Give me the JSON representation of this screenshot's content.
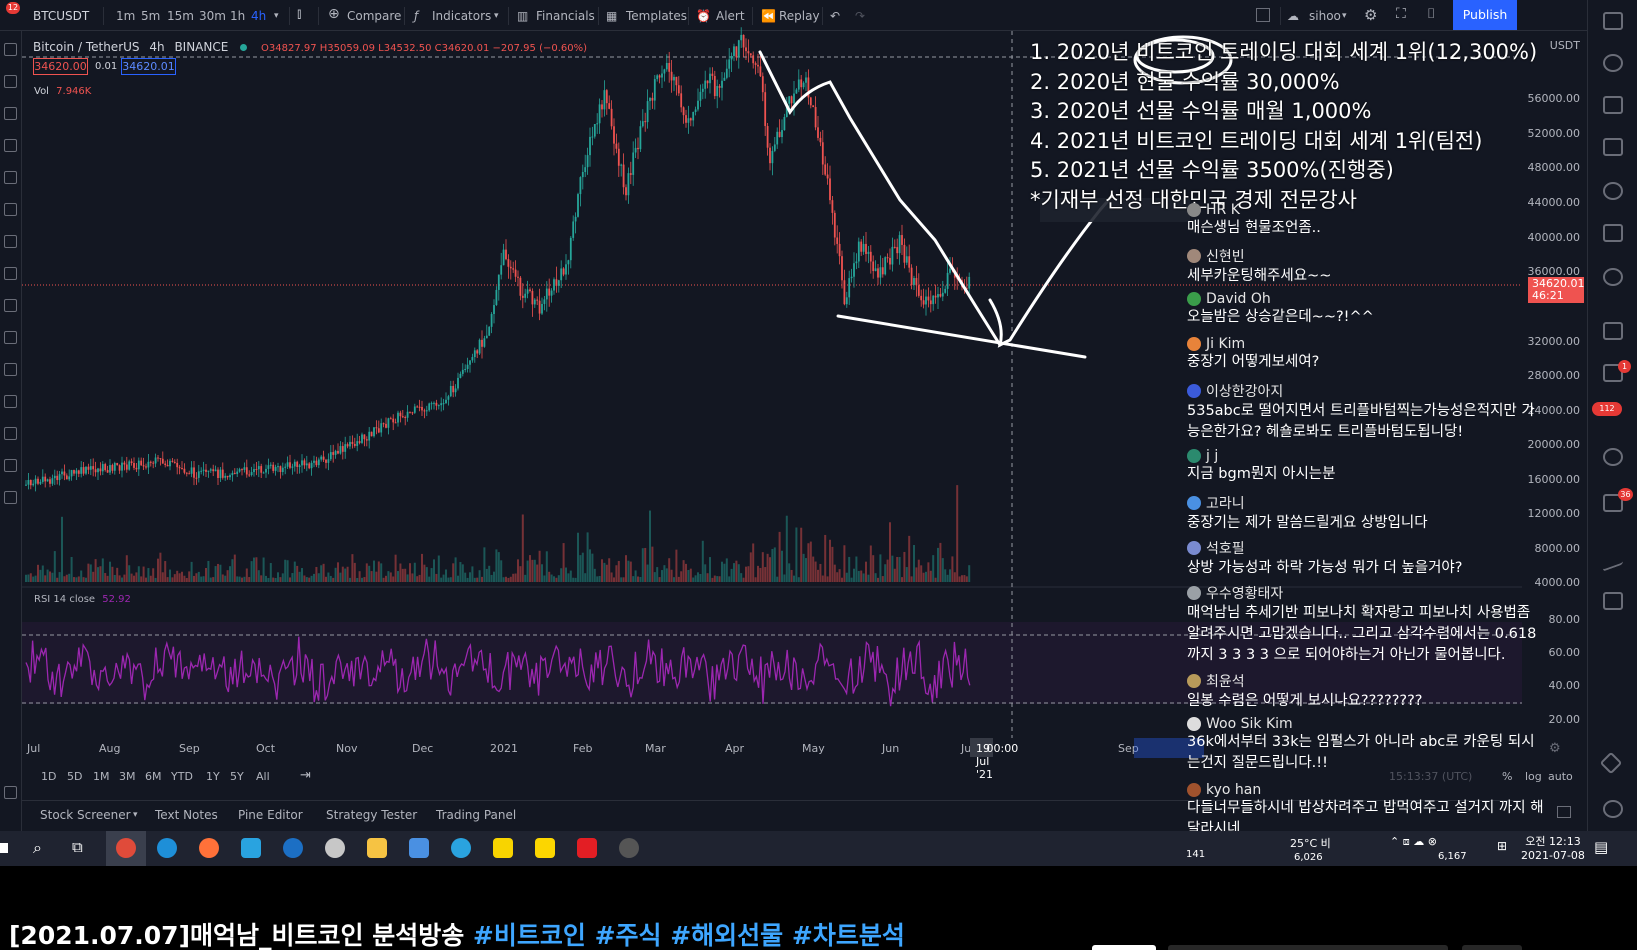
{
  "toolbar": {
    "symbol": "BTCUSDT",
    "notif_count": "12",
    "intervals": [
      "1m",
      "5m",
      "15m",
      "30m",
      "1h",
      "4h"
    ],
    "active_interval": "4h",
    "compare": "Compare",
    "indicators": "Indicators",
    "financials": "Financials",
    "templates": "Templates",
    "alert": "Alert",
    "replay": "Replay",
    "user": "sihoo",
    "publish": "Publish"
  },
  "legend": {
    "title": "Bitcoin / TetherUS",
    "interval": "4h",
    "exchange": "BINANCE",
    "ohlc": "O34827.97 H35059.09 L34532.50 C34620.01 −207.95 (−0.60%)",
    "bid": "34620.00",
    "spread": "0.01",
    "ask": "34620.01",
    "vol_label": "Vol",
    "vol_value": "7.946K",
    "rsi_label": "RSI 14 close",
    "rsi_value": "52.92"
  },
  "price_axis": {
    "labels": [
      "USDT",
      "56000.00",
      "52000.00",
      "48000.00",
      "44000.00",
      "40000.00",
      "36000.00",
      "34620.01",
      "46:21",
      "32000.00",
      "28000.00",
      "24000.00",
      "20000.00",
      "16000.00",
      "12000.00",
      "8000.00",
      "4000.00",
      "80.00",
      "60.00",
      "40.00",
      "20.00"
    ],
    "current_price": "34620.01",
    "countdown": "46:21"
  },
  "time_axis": {
    "labels": [
      "Jul",
      "Aug",
      "Sep",
      "Oct",
      "Nov",
      "Dec",
      "2021",
      "Feb",
      "Mar",
      "Apr",
      "May",
      "Jun",
      "Ju",
      "Sep"
    ],
    "cursor_date": "19 Jul '21",
    "cursor_time": "00:00"
  },
  "range_bar": {
    "ranges": [
      "1D",
      "5D",
      "1M",
      "3M",
      "6M",
      "YTD",
      "1Y",
      "5Y",
      "All"
    ],
    "clock": "15:13:37 (UTC)",
    "pct": "%",
    "log": "log",
    "auto": "auto"
  },
  "bottom_tabs": [
    "Stock Screener",
    "Text Notes",
    "Pine Editor",
    "Strategy Tester",
    "Trading Panel"
  ],
  "overlay_lines": [
    "1. 2020년 비트코인 트레이딩 대회 세계 1위(12,300%)",
    "2. 2020년 현물 수익률 30,000%",
    "3. 2020년 선물 수익률 매월 1,000%",
    "4. 2021년 비트코인 트레이딩 대회 세계 1위(팀전)",
    "5. 2021년 선물 수익률 3500%(진행중)",
    "*기재부 선정 대한민국 경제 전문강사"
  ],
  "chat": [
    {
      "name": "HR K",
      "text": "매슨생님 현물조언좀..",
      "color": "#888888"
    },
    {
      "name": "신현빈",
      "text": "세부카운팅해주세요~~",
      "color": "#a0887a"
    },
    {
      "name": "David Oh",
      "text": "오늘밤은 상승같은데~~?!^^",
      "color": "#3a9d4a"
    },
    {
      "name": "Ji Kim",
      "text": "중장기 어떻게보세여?",
      "color": "#e8833a"
    },
    {
      "name": "이상한강아지",
      "text": "535abc로 떨어지면서 트리플바텀찍는가능성은적지만 가능은한가요? 헤숄로봐도 트리플바텀도됩니당!",
      "color": "#3b5bdb"
    },
    {
      "name": "j j",
      "text": "지금 bgm뭔지 아시는분",
      "color": "#2b8a6e"
    },
    {
      "name": "고라니",
      "text": "중장기는 제가 말씀드릴게요 상방입니다",
      "color": "#4a90e2"
    },
    {
      "name": "석호필",
      "text": "상방 가능성과 하락 가능성 뭐가 더 높을거야?",
      "color": "#7a8bd0"
    },
    {
      "name": "우수영황태자",
      "text": "매억남님 추세기반 피보나치 확자랑고 피보나치 사용법좀 알려주시면 고맙겠습니다.. 그리고 삼각수렴에서는 0.618까지 3 3 3 3 으로 되어야하는거 아닌가 물어봅니다.",
      "color": "#9aa0a6"
    },
    {
      "name": "최윤석",
      "text": "일봉 수렴은 어떻게 보시나요????????",
      "color": "#b89a5a"
    },
    {
      "name": "Woo Sik Kim",
      "text": "36k에서부터 33k는 임펄스가 아니라 abc로 카운팅 되시는건지 질문드립니다.!!",
      "color": "#dddddd"
    },
    {
      "name": "kyo han",
      "text": "다들너무들하시네 밥상차려주고 밥먹여주고 설거지 까지 해달라시네.....",
      "color": "#a0522d"
    }
  ],
  "taskbar": {
    "viewers": "141",
    "likes": "6,026",
    "weather": "25°C 비",
    "subs": "6,167",
    "time": "오전 12:13",
    "date": "2021-07-08"
  },
  "side_badges": {
    "alerts": "1",
    "notif": "112",
    "chats": "36"
  },
  "caption": {
    "title": "[2021.07.07]매억남_비트코인 분석방송 ",
    "tags": "#비트코인 #주식 #해외선물 #차트분석"
  },
  "colors": {
    "background": "#131722",
    "up": "#26a69a",
    "down": "#ef5350",
    "rsi": "#9c27b0",
    "publish": "#2962ff",
    "link": "#3ea6ff"
  }
}
